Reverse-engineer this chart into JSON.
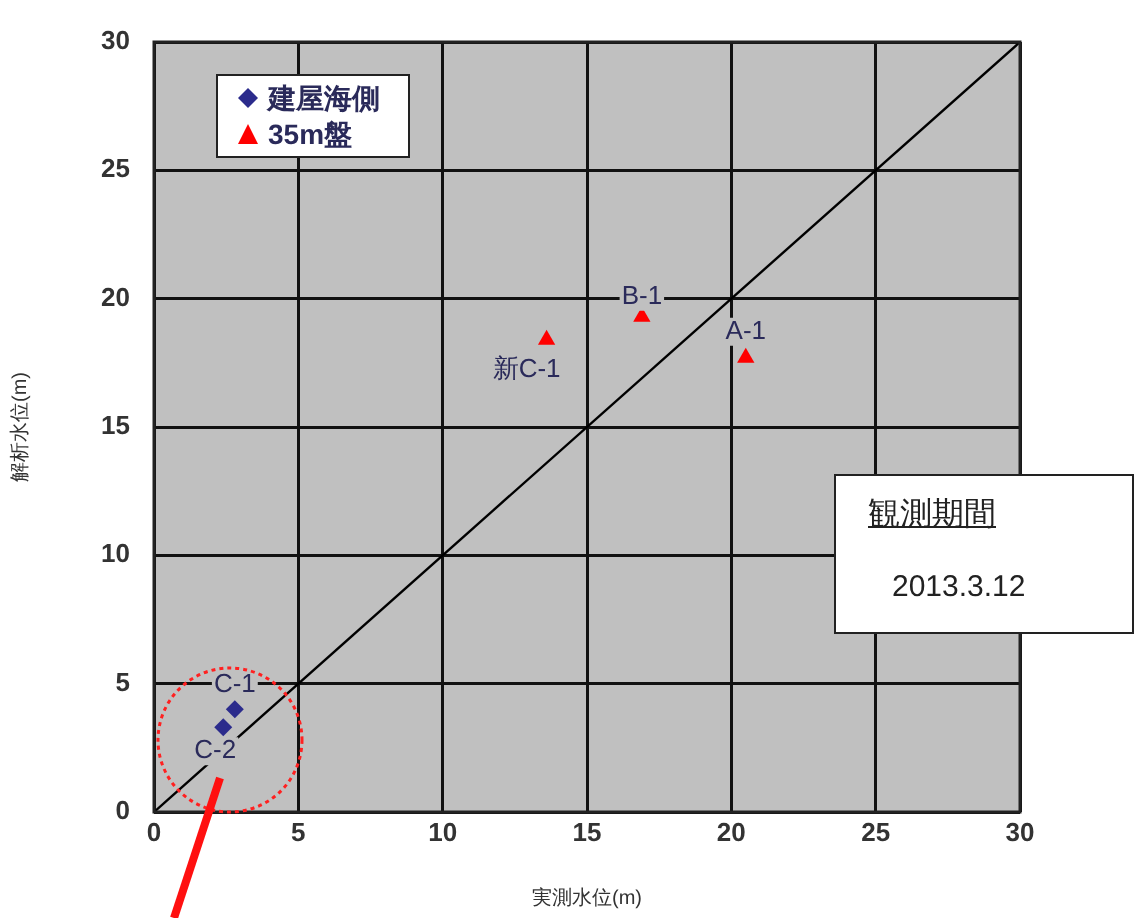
{
  "chart_data": {
    "type": "scatter",
    "xlabel": "実測水位(m)",
    "ylabel": "解析水位(m)",
    "xlim": [
      0,
      30
    ],
    "xticks": [
      0,
      5,
      10,
      15,
      20,
      25,
      30
    ],
    "ylim": [
      0,
      30
    ],
    "yticks": [
      0,
      5,
      10,
      15,
      20,
      25,
      30
    ],
    "grid": true,
    "legend": "top left",
    "series": [
      {
        "name": "建屋海側",
        "color": "#2b2b8c",
        "marker": "diamond",
        "x": [
          2.8,
          2.4
        ],
        "values": [
          4.0,
          3.3
        ]
      },
      {
        "name": "35m盤",
        "color": "#ff0000",
        "marker": "triangle",
        "x": [
          13.6,
          16.9,
          20.5
        ],
        "values": [
          18.4,
          19.3,
          17.7
        ]
      },
      {
        "type": "line",
        "color": "#000000",
        "marker": "none",
        "x": [
          0,
          30
        ],
        "values": [
          0,
          30
        ]
      }
    ],
    "annotations": [
      "観測期間",
      "2013.3.12",
      {
        "text": "C-1",
        "x": 2.8,
        "y": 4.0
      },
      {
        "text": "C-2",
        "x": 2.4,
        "y": 3.3
      },
      {
        "text": "新C-1",
        "x": 13.6,
        "y": 18.4
      },
      {
        "text": "B-1",
        "x": 16.9,
        "y": 19.3
      },
      {
        "text": "A-1",
        "x": 20.5,
        "y": 17.7
      }
    ]
  }
}
